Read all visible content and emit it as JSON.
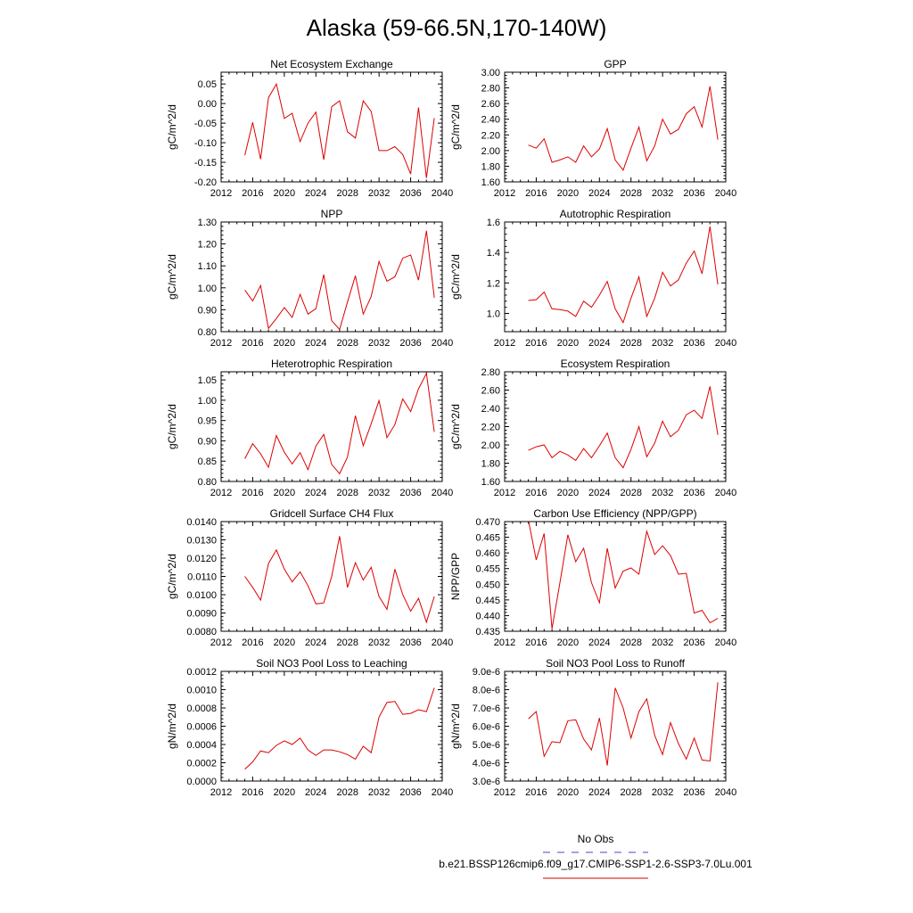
{
  "figure": {
    "title": "Alaska (59-66.5N,170-140W)"
  },
  "legend": {
    "entries": [
      {
        "label": "No Obs",
        "color": "#4444cc",
        "dash": true
      },
      {
        "label": "b.e21.BSSP126cmip6.f09_g17.CMIP6-SSP1-2.6-SSP3-7.0Lu.001",
        "color": "#dd0000",
        "dash": false
      }
    ]
  },
  "chart_data": [
    {
      "type": "line",
      "title": "Net Ecosystem Exchange",
      "ylabel": "gC/m^2/d",
      "xlim": [
        2012,
        2040
      ],
      "ylim": [
        -0.2,
        0.08
      ],
      "xticks": [
        2012,
        2016,
        2020,
        2024,
        2028,
        2032,
        2036,
        2040
      ],
      "yticks": [
        -0.2,
        -0.15,
        -0.1,
        -0.05,
        0.0,
        0.05
      ],
      "ytick_labels": [
        "-0.20",
        "-0.15",
        "-0.10",
        "-0.05",
        "0.00",
        "0.05"
      ],
      "series": [
        {
          "color": "#dd0000",
          "x": [
            2015,
            2016,
            2017,
            2018,
            2019,
            2020,
            2021,
            2022,
            2023,
            2024,
            2025,
            2026,
            2027,
            2028,
            2029,
            2030,
            2031,
            2032,
            2033,
            2034,
            2035,
            2036,
            2037,
            2038,
            2039
          ],
          "y": [
            -0.132,
            -0.048,
            -0.142,
            0.015,
            0.05,
            -0.038,
            -0.025,
            -0.097,
            -0.05,
            -0.022,
            -0.143,
            -0.008,
            0.007,
            -0.072,
            -0.088,
            0.007,
            -0.02,
            -0.12,
            -0.12,
            -0.11,
            -0.13,
            -0.18,
            -0.01,
            -0.19,
            -0.037
          ]
        }
      ]
    },
    {
      "type": "line",
      "title": "GPP",
      "ylabel": "gC/m^2/d",
      "xlim": [
        2012,
        2040
      ],
      "ylim": [
        1.6,
        3.0
      ],
      "xticks": [
        2012,
        2016,
        2020,
        2024,
        2028,
        2032,
        2036,
        2040
      ],
      "yticks": [
        1.6,
        1.8,
        2.0,
        2.2,
        2.4,
        2.6,
        2.8,
        3.0
      ],
      "ytick_labels": [
        "1.60",
        "1.80",
        "2.00",
        "2.20",
        "2.40",
        "2.60",
        "2.80",
        "3.00"
      ],
      "series": [
        {
          "color": "#dd0000",
          "x": [
            2015,
            2016,
            2017,
            2018,
            2019,
            2020,
            2021,
            2022,
            2023,
            2024,
            2025,
            2026,
            2027,
            2028,
            2029,
            2030,
            2031,
            2032,
            2033,
            2034,
            2035,
            2036,
            2037,
            2038,
            2039
          ],
          "y": [
            2.07,
            2.03,
            2.15,
            1.85,
            1.88,
            1.92,
            1.85,
            2.06,
            1.92,
            2.02,
            2.28,
            1.88,
            1.75,
            2.03,
            2.3,
            1.87,
            2.06,
            2.4,
            2.21,
            2.27,
            2.47,
            2.56,
            2.3,
            2.82,
            2.14
          ]
        }
      ]
    },
    {
      "type": "line",
      "title": "NPP",
      "ylabel": "gC/m^2/d",
      "xlim": [
        2012,
        2040
      ],
      "ylim": [
        0.8,
        1.3
      ],
      "xticks": [
        2012,
        2016,
        2020,
        2024,
        2028,
        2032,
        2036,
        2040
      ],
      "yticks": [
        0.8,
        0.9,
        1.0,
        1.1,
        1.2,
        1.3
      ],
      "ytick_labels": [
        "0.80",
        "0.90",
        "1.00",
        "1.10",
        "1.20",
        "1.30"
      ],
      "series": [
        {
          "color": "#dd0000",
          "x": [
            2015,
            2016,
            2017,
            2018,
            2019,
            2020,
            2021,
            2022,
            2023,
            2024,
            2025,
            2026,
            2027,
            2028,
            2029,
            2030,
            2031,
            2032,
            2033,
            2034,
            2035,
            2036,
            2037,
            2038,
            2039
          ],
          "y": [
            0.99,
            0.94,
            1.01,
            0.815,
            0.86,
            0.91,
            0.865,
            0.97,
            0.88,
            0.905,
            1.06,
            0.85,
            0.81,
            0.935,
            1.055,
            0.88,
            0.96,
            1.12,
            1.03,
            1.05,
            1.135,
            1.15,
            1.035,
            1.26,
            0.955
          ]
        }
      ]
    },
    {
      "type": "line",
      "title": "Autotrophic Respiration",
      "ylabel": "gC/m^2/d",
      "xlim": [
        2012,
        2040
      ],
      "ylim": [
        0.88,
        1.6
      ],
      "xticks": [
        2012,
        2016,
        2020,
        2024,
        2028,
        2032,
        2036,
        2040
      ],
      "yticks": [
        1.0,
        1.2,
        1.4,
        1.6
      ],
      "ytick_labels": [
        "1.0",
        "1.2",
        "1.4",
        "1.6"
      ],
      "series": [
        {
          "color": "#dd0000",
          "x": [
            2015,
            2016,
            2017,
            2018,
            2019,
            2020,
            2021,
            2022,
            2023,
            2024,
            2025,
            2026,
            2027,
            2028,
            2029,
            2030,
            2031,
            2032,
            2033,
            2034,
            2035,
            2036,
            2037,
            2038,
            2039
          ],
          "y": [
            1.085,
            1.09,
            1.14,
            1.03,
            1.025,
            1.015,
            0.98,
            1.08,
            1.04,
            1.12,
            1.21,
            1.03,
            0.94,
            1.1,
            1.24,
            0.98,
            1.1,
            1.27,
            1.18,
            1.22,
            1.33,
            1.41,
            1.26,
            1.57,
            1.19
          ]
        }
      ]
    },
    {
      "type": "line",
      "title": "Heterotrophic Respiration",
      "ylabel": "gC/m^2/d",
      "xlim": [
        2012,
        2040
      ],
      "ylim": [
        0.8,
        1.07
      ],
      "xticks": [
        2012,
        2016,
        2020,
        2024,
        2028,
        2032,
        2036,
        2040
      ],
      "yticks": [
        0.8,
        0.85,
        0.9,
        0.95,
        1.0,
        1.05
      ],
      "ytick_labels": [
        "0.80",
        "0.85",
        "0.90",
        "0.95",
        "1.00",
        "1.05"
      ],
      "series": [
        {
          "color": "#dd0000",
          "x": [
            2015,
            2016,
            2017,
            2018,
            2019,
            2020,
            2021,
            2022,
            2023,
            2024,
            2025,
            2026,
            2027,
            2028,
            2029,
            2030,
            2031,
            2032,
            2033,
            2034,
            2035,
            2036,
            2037,
            2038,
            2039
          ],
          "y": [
            0.856,
            0.893,
            0.868,
            0.835,
            0.913,
            0.872,
            0.843,
            0.871,
            0.829,
            0.887,
            0.916,
            0.842,
            0.819,
            0.86,
            0.962,
            0.888,
            0.942,
            0.999,
            0.908,
            0.94,
            1.003,
            0.972,
            1.028,
            1.066,
            0.922
          ]
        }
      ]
    },
    {
      "type": "line",
      "title": "Ecosystem Respiration",
      "ylabel": "gC/m^2/d",
      "xlim": [
        2012,
        2040
      ],
      "ylim": [
        1.6,
        2.8
      ],
      "xticks": [
        2012,
        2016,
        2020,
        2024,
        2028,
        2032,
        2036,
        2040
      ],
      "yticks": [
        1.6,
        1.8,
        2.0,
        2.2,
        2.4,
        2.6,
        2.8
      ],
      "ytick_labels": [
        "1.60",
        "1.80",
        "2.00",
        "2.20",
        "2.40",
        "2.60",
        "2.80"
      ],
      "series": [
        {
          "color": "#dd0000",
          "x": [
            2015,
            2016,
            2017,
            2018,
            2019,
            2020,
            2021,
            2022,
            2023,
            2024,
            2025,
            2026,
            2027,
            2028,
            2029,
            2030,
            2031,
            2032,
            2033,
            2034,
            2035,
            2036,
            2037,
            2038,
            2039
          ],
          "y": [
            1.94,
            1.98,
            2.0,
            1.86,
            1.93,
            1.89,
            1.83,
            1.96,
            1.86,
            1.99,
            2.13,
            1.86,
            1.75,
            1.95,
            2.2,
            1.87,
            2.02,
            2.26,
            2.09,
            2.16,
            2.33,
            2.38,
            2.29,
            2.64,
            2.11
          ]
        }
      ]
    },
    {
      "type": "line",
      "title": "Gridcell Surface CH4 Flux",
      "ylabel": "gC/m^2/d",
      "xlim": [
        2012,
        2040
      ],
      "ylim": [
        0.008,
        0.014
      ],
      "xticks": [
        2012,
        2016,
        2020,
        2024,
        2028,
        2032,
        2036,
        2040
      ],
      "yticks": [
        0.008,
        0.009,
        0.01,
        0.011,
        0.012,
        0.013,
        0.014
      ],
      "ytick_labels": [
        "0.0080",
        "0.0090",
        "0.0100",
        "0.0110",
        "0.0120",
        "0.0130",
        "0.0140"
      ],
      "series": [
        {
          "color": "#dd0000",
          "x": [
            2015,
            2016,
            2017,
            2018,
            2019,
            2020,
            2021,
            2022,
            2023,
            2024,
            2025,
            2026,
            2027,
            2028,
            2029,
            2030,
            2031,
            2032,
            2033,
            2034,
            2035,
            2036,
            2037,
            2038,
            2039
          ],
          "y": [
            0.011,
            0.0104,
            0.0097,
            0.0117,
            0.01245,
            0.0114,
            0.0107,
            0.01125,
            0.0105,
            0.0095,
            0.00955,
            0.011,
            0.0132,
            0.0104,
            0.01175,
            0.0108,
            0.0115,
            0.0099,
            0.0092,
            0.0114,
            0.01,
            0.0091,
            0.0098,
            0.0085,
            0.0099
          ]
        }
      ]
    },
    {
      "type": "line",
      "title": "Carbon Use Efficiency (NPP/GPP)",
      "ylabel": "NPP/GPP",
      "xlim": [
        2012,
        2040
      ],
      "ylim": [
        0.435,
        0.47
      ],
      "xticks": [
        2012,
        2016,
        2020,
        2024,
        2028,
        2032,
        2036,
        2040
      ],
      "yticks": [
        0.435,
        0.44,
        0.445,
        0.45,
        0.455,
        0.46,
        0.465,
        0.47
      ],
      "ytick_labels": [
        "0.435",
        "0.440",
        "0.445",
        "0.450",
        "0.455",
        "0.460",
        "0.465",
        "0.470"
      ],
      "series": [
        {
          "color": "#dd0000",
          "x": [
            2015,
            2016,
            2017,
            2018,
            2019,
            2020,
            2021,
            2022,
            2023,
            2024,
            2025,
            2026,
            2027,
            2028,
            2029,
            2030,
            2031,
            2032,
            2033,
            2034,
            2035,
            2036,
            2037,
            2038,
            2039
          ],
          "y": [
            0.4705,
            0.4578,
            0.4662,
            0.4358,
            0.4505,
            0.4658,
            0.4572,
            0.4615,
            0.4505,
            0.4441,
            0.4615,
            0.4488,
            0.4542,
            0.4552,
            0.4532,
            0.4669,
            0.4595,
            0.4623,
            0.4592,
            0.4532,
            0.4535,
            0.4408,
            0.4417,
            0.4377,
            0.4391
          ]
        }
      ]
    },
    {
      "type": "line",
      "title": "Soil NO3 Pool Loss to Leaching",
      "ylabel": "gN/m^2/d",
      "xlim": [
        2012,
        2040
      ],
      "ylim": [
        0.0,
        0.0012
      ],
      "xticks": [
        2012,
        2016,
        2020,
        2024,
        2028,
        2032,
        2036,
        2040
      ],
      "yticks": [
        0.0,
        0.0002,
        0.0004,
        0.0006,
        0.0008,
        0.001,
        0.0012
      ],
      "ytick_labels": [
        "0.0000",
        "0.0002",
        "0.0004",
        "0.0006",
        "0.0008",
        "0.0010",
        "0.0012"
      ],
      "series": [
        {
          "color": "#dd0000",
          "x": [
            2015,
            2016,
            2017,
            2018,
            2019,
            2020,
            2021,
            2022,
            2023,
            2024,
            2025,
            2026,
            2027,
            2028,
            2029,
            2030,
            2031,
            2032,
            2033,
            2034,
            2035,
            2036,
            2037,
            2038,
            2039
          ],
          "y": [
            0.00013,
            0.00021,
            0.00033,
            0.00031,
            0.00039,
            0.00044,
            0.0004,
            0.00047,
            0.00034,
            0.00028,
            0.00034,
            0.00034,
            0.00032,
            0.00029,
            0.00024,
            0.00038,
            0.00031,
            0.0007,
            0.00086,
            0.00087,
            0.00073,
            0.00074,
            0.00078,
            0.00076,
            0.00102
          ]
        }
      ]
    },
    {
      "type": "line",
      "title": "Soil NO3 Pool Loss to Runoff",
      "ylabel": "gN/m^2/d",
      "xlim": [
        2012,
        2040
      ],
      "ylim": [
        3e-06,
        9e-06
      ],
      "xticks": [
        2012,
        2016,
        2020,
        2024,
        2028,
        2032,
        2036,
        2040
      ],
      "yticks": [
        3e-06,
        4e-06,
        5e-06,
        6e-06,
        7e-06,
        8e-06,
        9e-06
      ],
      "ytick_labels": [
        "3.0e-6",
        "4.0e-6",
        "5.0e-6",
        "6.0e-6",
        "7.0e-6",
        "8.0e-6",
        "9.0e-6"
      ],
      "series": [
        {
          "color": "#dd0000",
          "x": [
            2015,
            2016,
            2017,
            2018,
            2019,
            2020,
            2021,
            2022,
            2023,
            2024,
            2025,
            2026,
            2027,
            2028,
            2029,
            2030,
            2031,
            2032,
            2033,
            2034,
            2035,
            2036,
            2037,
            2038,
            2039
          ],
          "y": [
            6.4e-06,
            6.8e-06,
            4.35e-06,
            5.15e-06,
            5.1e-06,
            6.3e-06,
            6.35e-06,
            5.3e-06,
            4.7e-06,
            6.45e-06,
            3.85e-06,
            8.1e-06,
            7e-06,
            5.35e-06,
            6.8e-06,
            7.5e-06,
            5.5e-06,
            4.45e-06,
            6.2e-06,
            5.05e-06,
            4.2e-06,
            5.35e-06,
            4.15e-06,
            4.1e-06,
            8.4e-06
          ]
        }
      ]
    }
  ]
}
